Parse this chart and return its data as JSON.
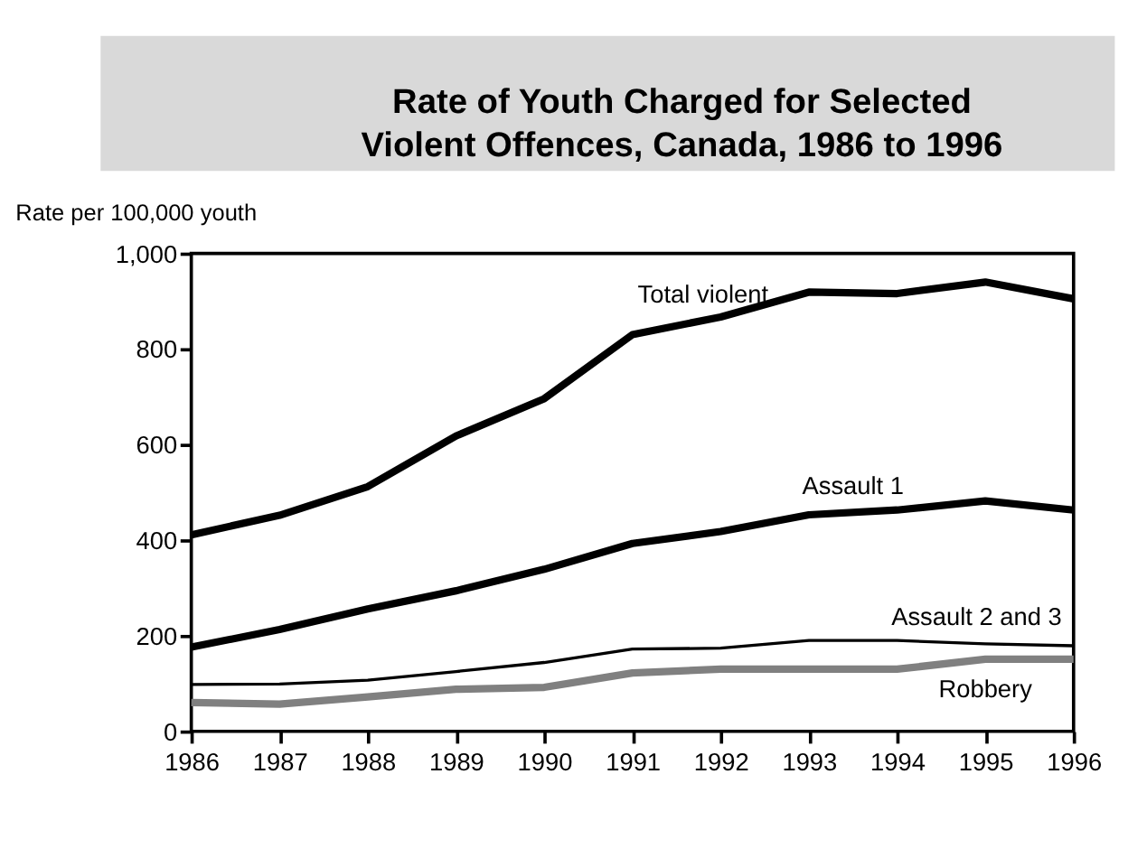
{
  "chart_data": {
    "type": "line",
    "title": "Rate of Youth Charged for Selected\nViolent Offences, Canada, 1986 to 1996",
    "ylabel": "Rate per 100,000 youth",
    "x": [
      1986,
      1987,
      1988,
      1989,
      1990,
      1991,
      1992,
      1993,
      1994,
      1995,
      1996
    ],
    "xlim": [
      1986,
      1996
    ],
    "xticks": [
      1986,
      1987,
      1988,
      1989,
      1990,
      1991,
      1992,
      1993,
      1994,
      1995,
      1996
    ],
    "ylim": [
      0,
      1000
    ],
    "yticks": [
      0,
      200,
      400,
      600,
      800,
      {
        "value": 1000,
        "label": "1,000"
      }
    ],
    "grid": false,
    "marker": "none",
    "line_style": "solid",
    "series": [
      {
        "name": "Total violent",
        "color": "#000000",
        "values": [
          411,
          452,
          512,
          618,
          696,
          830,
          867,
          919,
          916,
          940,
          905
        ]
      },
      {
        "name": "Assault 1",
        "color": "#000000",
        "values": [
          176,
          213,
          256,
          294,
          339,
          393,
          418,
          453,
          463,
          482,
          463
        ]
      },
      {
        "name": "Assault 2 and 3",
        "color": "#000000",
        "values": [
          98,
          99,
          107,
          125,
          144,
          172,
          174,
          190,
          190,
          183,
          179
        ]
      },
      {
        "name": "Robbery",
        "color": "#808080",
        "values": [
          60,
          57,
          72,
          88,
          92,
          122,
          130,
          130,
          130,
          151,
          151
        ]
      }
    ]
  }
}
